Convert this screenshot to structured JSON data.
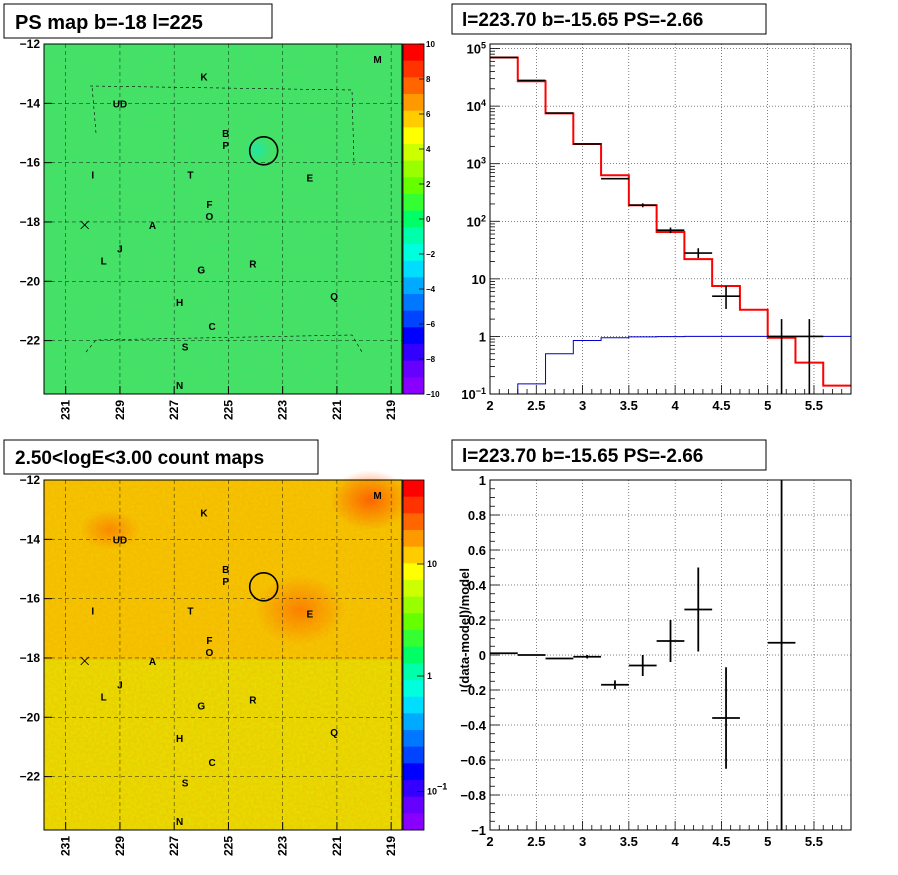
{
  "chart_data": [
    {
      "type": "heatmap",
      "title": "PS map b=-18 l=225",
      "xlabel": "",
      "ylabel": "",
      "x_tick_labels": [
        "231",
        "229",
        "227",
        "225",
        "223",
        "221",
        "219"
      ],
      "y_tick_labels": [
        "-12",
        "-14",
        "-16",
        "-18",
        "-20",
        "-22"
      ],
      "xlim": [
        231.8,
        218.6
      ],
      "ylim": [
        -23.8,
        -12.0
      ],
      "colorbar": {
        "scale": "linear",
        "range": [
          -10,
          10
        ],
        "tick_labels": [
          "10",
          "8",
          "6",
          "4",
          "2",
          "0",
          "-2",
          "-4",
          "-6",
          "-8",
          "-10"
        ],
        "colors": [
          "#ff0000",
          "#ff3300",
          "#ff6600",
          "#ff9900",
          "#ffcc00",
          "#ffff00",
          "#ccff00",
          "#99ff00",
          "#66ff00",
          "#33ff33",
          "#00ff66",
          "#00ffaa",
          "#00ffdd",
          "#00ddff",
          "#00aaff",
          "#0077ff",
          "#0044ff",
          "#0000ff",
          "#3300ff",
          "#6600ff",
          "#8800ff"
        ]
      },
      "background_value": 0.3,
      "source_labels": [
        {
          "text": "M",
          "l": 219.5,
          "b": -12.5
        },
        {
          "text": "K",
          "l": 225.9,
          "b": -13.1
        },
        {
          "text": "UD",
          "l": 229.0,
          "b": -14.0
        },
        {
          "text": "B",
          "l": 225.1,
          "b": -15.0
        },
        {
          "text": "P",
          "l": 225.1,
          "b": -15.4
        },
        {
          "text": "I",
          "l": 230.0,
          "b": -16.4
        },
        {
          "text": "T",
          "l": 226.4,
          "b": -16.4
        },
        {
          "text": "E",
          "l": 222.0,
          "b": -16.5
        },
        {
          "text": "F",
          "l": 225.7,
          "b": -17.4
        },
        {
          "text": "O",
          "l": 225.7,
          "b": -17.8
        },
        {
          "text": "A",
          "l": 227.8,
          "b": -18.1
        },
        {
          "text": "J",
          "l": 229.0,
          "b": -18.9
        },
        {
          "text": "L",
          "l": 229.6,
          "b": -19.3
        },
        {
          "text": "G",
          "l": 226.0,
          "b": -19.6
        },
        {
          "text": "R",
          "l": 224.1,
          "b": -19.4
        },
        {
          "text": "Q",
          "l": 221.1,
          "b": -20.5
        },
        {
          "text": "H",
          "l": 226.8,
          "b": -20.7
        },
        {
          "text": "C",
          "l": 225.6,
          "b": -21.5
        },
        {
          "text": "S",
          "l": 226.6,
          "b": -22.2
        },
        {
          "text": "N",
          "l": 226.8,
          "b": -23.5
        }
      ],
      "marker_circle": {
        "l": 223.7,
        "b": -15.6
      },
      "marker_cross": {
        "l": 230.3,
        "b": -18.1
      }
    },
    {
      "type": "line",
      "title": "l=223.70 b=-15.65 PS=-2.66",
      "xlabel": "",
      "ylabel": "",
      "x_scale": "linear",
      "y_scale": "log",
      "xlim": [
        2.0,
        5.9
      ],
      "ylim": [
        0.1,
        120000
      ],
      "x_tick_labels": [
        "2",
        "2.5",
        "3",
        "3.5",
        "4",
        "4.5",
        "5",
        "5.5"
      ],
      "y_tick_labels": [
        "10^-1",
        "1",
        "10",
        "10^2",
        "10^3",
        "10^4",
        "10^5"
      ],
      "grid": true,
      "series": [
        {
          "color": "#ff0000",
          "style": "step",
          "bin_edges": [
            2.0,
            2.3,
            2.6,
            2.9,
            3.2,
            3.5,
            3.8,
            4.1,
            4.4,
            4.7,
            5.0,
            5.3,
            5.6,
            5.9
          ],
          "values": [
            70000,
            27000,
            7500,
            2200,
            630,
            190,
            65,
            22,
            7.5,
            2.9,
            0.95,
            0.35,
            0.14
          ]
        },
        {
          "color": "#0000cc",
          "style": "step",
          "bin_edges": [
            2.0,
            2.3,
            2.6,
            2.9,
            3.2,
            3.5,
            3.8,
            4.1,
            4.4,
            4.7,
            5.0,
            5.3,
            5.6,
            5.9
          ],
          "values": [
            0.09,
            0.15,
            0.5,
            0.85,
            0.95,
            0.98,
            0.99,
            1.0,
            1.0,
            1.0,
            1.0,
            1.0,
            1.0
          ]
        }
      ],
      "points": [
        {
          "x": 2.15,
          "y": 70000,
          "xerr": 0.15,
          "ylo": 70000,
          "yhi": 70000
        },
        {
          "x": 2.45,
          "y": 28000,
          "xerr": 0.15,
          "ylo": 28000,
          "yhi": 28000
        },
        {
          "x": 2.75,
          "y": 7600,
          "xerr": 0.15,
          "ylo": 7600,
          "yhi": 7600
        },
        {
          "x": 3.05,
          "y": 2200,
          "xerr": 0.15,
          "ylo": 2200,
          "yhi": 2200
        },
        {
          "x": 3.35,
          "y": 550,
          "xerr": 0.15,
          "ylo": 550,
          "yhi": 550
        },
        {
          "x": 3.65,
          "y": 190,
          "xerr": 0.15,
          "ylo": 175,
          "yhi": 205
        },
        {
          "x": 3.95,
          "y": 70,
          "xerr": 0.15,
          "ylo": 62,
          "yhi": 78
        },
        {
          "x": 4.25,
          "y": 28,
          "xerr": 0.15,
          "ylo": 23,
          "yhi": 34
        },
        {
          "x": 4.55,
          "y": 5,
          "xerr": 0.15,
          "ylo": 3,
          "yhi": 7.5
        },
        {
          "x": 5.15,
          "y": 1,
          "xerr": 0.15,
          "ylo": 0.1,
          "yhi": 2
        },
        {
          "x": 5.45,
          "y": 1,
          "xerr": 0.15,
          "ylo": 0.1,
          "yhi": 2
        }
      ]
    },
    {
      "type": "heatmap",
      "title": "2.50<logE<3.00 count maps",
      "xlabel": "",
      "ylabel": "",
      "x_tick_labels": [
        "231",
        "229",
        "227",
        "225",
        "223",
        "221",
        "219"
      ],
      "y_tick_labels": [
        "-12",
        "-14",
        "-16",
        "-18",
        "-20",
        "-22"
      ],
      "xlim": [
        231.8,
        218.6
      ],
      "ylim": [
        -23.8,
        -12.0
      ],
      "colorbar": {
        "scale": "log",
        "tick_labels": [
          "10",
          "1",
          "10^-1"
        ],
        "colors": [
          "#ff0000",
          "#ff3300",
          "#ff6600",
          "#ff9900",
          "#ffcc00",
          "#ffff00",
          "#ccff00",
          "#99ff00",
          "#66ff00",
          "#33ff33",
          "#00ff66",
          "#00ffaa",
          "#00ffdd",
          "#00ddff",
          "#00aaff",
          "#0077ff",
          "#0044ff",
          "#0000ff",
          "#3300ff",
          "#6600ff",
          "#8800ff"
        ]
      },
      "marker_circle": {
        "l": 223.7,
        "b": -15.6
      },
      "marker_cross": {
        "l": 230.3,
        "b": -18.1
      }
    },
    {
      "type": "scatter",
      "title": "l=223.70 b=-15.65 PS=-2.66",
      "xlabel": "",
      "ylabel": "(data-model)/model",
      "xlim": [
        2.0,
        5.9
      ],
      "ylim": [
        -1.0,
        1.0
      ],
      "x_tick_labels": [
        "2",
        "2.5",
        "3",
        "3.5",
        "4",
        "4.5",
        "5",
        "5.5"
      ],
      "y_tick_labels": [
        "1",
        "0.8",
        "0.6",
        "0.4",
        "0.2",
        "0",
        "-0.2",
        "-0.4",
        "-0.6",
        "-0.8",
        "-1"
      ],
      "grid": true,
      "points": [
        {
          "x": 2.15,
          "y": 0.01,
          "xerr": 0.15,
          "yerr": 0.0
        },
        {
          "x": 2.45,
          "y": 0.0,
          "xerr": 0.15,
          "yerr": 0.0
        },
        {
          "x": 2.75,
          "y": -0.02,
          "xerr": 0.15,
          "yerr": 0.0
        },
        {
          "x": 3.05,
          "y": -0.01,
          "xerr": 0.15,
          "yerr": 0.01
        },
        {
          "x": 3.35,
          "y": -0.17,
          "xerr": 0.15,
          "yerr": 0.025
        },
        {
          "x": 3.65,
          "y": -0.06,
          "xerr": 0.15,
          "yerr": 0.06
        },
        {
          "x": 3.95,
          "y": 0.08,
          "xerr": 0.15,
          "yerr": 0.12
        },
        {
          "x": 4.25,
          "y": 0.26,
          "xerr": 0.15,
          "yerr": 0.24
        },
        {
          "x": 4.55,
          "y": -0.36,
          "xerr": 0.15,
          "yerr": 0.29
        },
        {
          "x": 5.15,
          "y": 0.07,
          "xerr": 0.15,
          "yerr": 1.1
        }
      ]
    }
  ]
}
